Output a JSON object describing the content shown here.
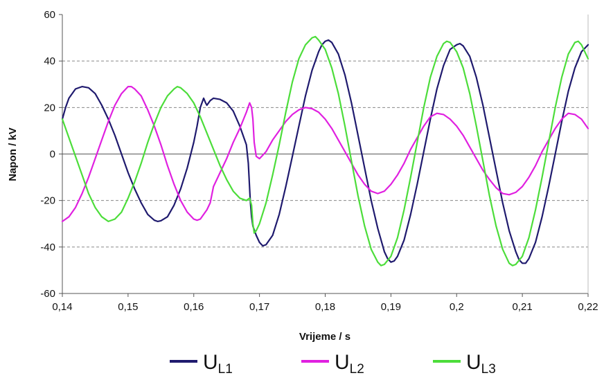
{
  "chart_data": {
    "type": "line",
    "title": "",
    "xlabel": "Vrijeme / s",
    "ylabel": "Napon / kV",
    "xlim": [
      0.14,
      0.22
    ],
    "ylim": [
      -60,
      60
    ],
    "x_ticks": [
      "0,14",
      "0,15",
      "0,16",
      "0,17",
      "0,18",
      "0,19",
      "0,2",
      "0,21",
      "0,22"
    ],
    "y_ticks": [
      "60",
      "40",
      "20",
      "0",
      "-20",
      "-40",
      "-60"
    ],
    "grid": "horizontal-dashed",
    "legend_position": "bottom",
    "series": [
      {
        "name": "UL1",
        "name_main": "U",
        "name_sub": "L1",
        "color": "#1f1a6e",
        "points": [
          [
            0.14,
            15
          ],
          [
            0.1405,
            20
          ],
          [
            0.141,
            24
          ],
          [
            0.142,
            28
          ],
          [
            0.143,
            29
          ],
          [
            0.144,
            28.5
          ],
          [
            0.145,
            26
          ],
          [
            0.146,
            21
          ],
          [
            0.147,
            15
          ],
          [
            0.148,
            8
          ],
          [
            0.149,
            0
          ],
          [
            0.15,
            -8
          ],
          [
            0.151,
            -15
          ],
          [
            0.152,
            -21
          ],
          [
            0.153,
            -26
          ],
          [
            0.154,
            -28.5
          ],
          [
            0.1545,
            -29
          ],
          [
            0.155,
            -28.7
          ],
          [
            0.156,
            -27
          ],
          [
            0.157,
            -22
          ],
          [
            0.158,
            -15
          ],
          [
            0.159,
            -6
          ],
          [
            0.16,
            5
          ],
          [
            0.1605,
            12
          ],
          [
            0.161,
            20
          ],
          [
            0.1615,
            24
          ],
          [
            0.1618,
            22
          ],
          [
            0.162,
            21
          ],
          [
            0.1625,
            23
          ],
          [
            0.163,
            24
          ],
          [
            0.164,
            23.5
          ],
          [
            0.165,
            22
          ],
          [
            0.166,
            18.5
          ],
          [
            0.167,
            12
          ],
          [
            0.168,
            4
          ],
          [
            0.1683,
            -4
          ],
          [
            0.1686,
            -20
          ],
          [
            0.1688,
            -27
          ],
          [
            0.169,
            -31
          ],
          [
            0.1695,
            -35
          ],
          [
            0.17,
            -38
          ],
          [
            0.1705,
            -39.5
          ],
          [
            0.171,
            -39
          ],
          [
            0.172,
            -35
          ],
          [
            0.173,
            -26
          ],
          [
            0.174,
            -14
          ],
          [
            0.175,
            -1
          ],
          [
            0.176,
            12
          ],
          [
            0.177,
            25
          ],
          [
            0.178,
            36
          ],
          [
            0.179,
            44
          ],
          [
            0.1795,
            47
          ],
          [
            0.18,
            48.5
          ],
          [
            0.1805,
            49
          ],
          [
            0.181,
            48
          ],
          [
            0.182,
            43
          ],
          [
            0.183,
            34
          ],
          [
            0.184,
            22
          ],
          [
            0.185,
            8
          ],
          [
            0.186,
            -6
          ],
          [
            0.187,
            -20
          ],
          [
            0.188,
            -32
          ],
          [
            0.189,
            -42
          ],
          [
            0.1895,
            -45
          ],
          [
            0.19,
            -46.5
          ],
          [
            0.1905,
            -46
          ],
          [
            0.191,
            -44
          ],
          [
            0.192,
            -37
          ],
          [
            0.193,
            -26
          ],
          [
            0.194,
            -13
          ],
          [
            0.195,
            1
          ],
          [
            0.196,
            15
          ],
          [
            0.197,
            28
          ],
          [
            0.198,
            38
          ],
          [
            0.199,
            45
          ],
          [
            0.2,
            47
          ],
          [
            0.2005,
            47.5
          ],
          [
            0.201,
            46.5
          ],
          [
            0.202,
            42
          ],
          [
            0.203,
            33
          ],
          [
            0.204,
            21
          ],
          [
            0.205,
            7
          ],
          [
            0.206,
            -7
          ],
          [
            0.207,
            -21
          ],
          [
            0.208,
            -33
          ],
          [
            0.209,
            -42
          ],
          [
            0.2095,
            -45.5
          ],
          [
            0.21,
            -47
          ],
          [
            0.2105,
            -47
          ],
          [
            0.211,
            -45
          ],
          [
            0.212,
            -38
          ],
          [
            0.213,
            -27
          ],
          [
            0.214,
            -14
          ],
          [
            0.215,
            0
          ],
          [
            0.216,
            14
          ],
          [
            0.217,
            27
          ],
          [
            0.218,
            37
          ],
          [
            0.219,
            44
          ],
          [
            0.22,
            47
          ]
        ]
      },
      {
        "name": "UL2",
        "name_main": "U",
        "name_sub": "L2",
        "color": "#e020e0",
        "points": [
          [
            0.14,
            -29
          ],
          [
            0.141,
            -27
          ],
          [
            0.142,
            -23
          ],
          [
            0.143,
            -17
          ],
          [
            0.144,
            -10
          ],
          [
            0.145,
            -2
          ],
          [
            0.146,
            6
          ],
          [
            0.147,
            14
          ],
          [
            0.148,
            21
          ],
          [
            0.149,
            26
          ],
          [
            0.15,
            29
          ],
          [
            0.1505,
            29
          ],
          [
            0.151,
            28
          ],
          [
            0.152,
            25
          ],
          [
            0.153,
            19
          ],
          [
            0.154,
            12
          ],
          [
            0.155,
            4
          ],
          [
            0.156,
            -5
          ],
          [
            0.157,
            -13
          ],
          [
            0.158,
            -20
          ],
          [
            0.159,
            -25
          ],
          [
            0.16,
            -28
          ],
          [
            0.1605,
            -28.5
          ],
          [
            0.161,
            -28
          ],
          [
            0.162,
            -24
          ],
          [
            0.1625,
            -21
          ],
          [
            0.163,
            -14
          ],
          [
            0.164,
            -8
          ],
          [
            0.165,
            -2
          ],
          [
            0.166,
            5
          ],
          [
            0.167,
            11
          ],
          [
            0.168,
            18
          ],
          [
            0.1685,
            22
          ],
          [
            0.1688,
            20
          ],
          [
            0.169,
            15
          ],
          [
            0.1692,
            5
          ],
          [
            0.1695,
            -1
          ],
          [
            0.17,
            -2
          ],
          [
            0.171,
            1
          ],
          [
            0.172,
            6
          ],
          [
            0.173,
            10
          ],
          [
            0.174,
            14
          ],
          [
            0.175,
            17
          ],
          [
            0.176,
            19
          ],
          [
            0.177,
            20
          ],
          [
            0.178,
            19.5
          ],
          [
            0.179,
            18
          ],
          [
            0.18,
            15
          ],
          [
            0.181,
            11
          ],
          [
            0.182,
            6
          ],
          [
            0.183,
            1
          ],
          [
            0.184,
            -4
          ],
          [
            0.185,
            -9
          ],
          [
            0.186,
            -13
          ],
          [
            0.187,
            -16
          ],
          [
            0.188,
            -17
          ],
          [
            0.189,
            -16
          ],
          [
            0.19,
            -13
          ],
          [
            0.191,
            -9
          ],
          [
            0.192,
            -4
          ],
          [
            0.193,
            2
          ],
          [
            0.194,
            7
          ],
          [
            0.195,
            12
          ],
          [
            0.196,
            16
          ],
          [
            0.197,
            17.5
          ],
          [
            0.198,
            17
          ],
          [
            0.199,
            15
          ],
          [
            0.2,
            12
          ],
          [
            0.201,
            8
          ],
          [
            0.202,
            3
          ],
          [
            0.203,
            -2
          ],
          [
            0.204,
            -7
          ],
          [
            0.205,
            -11
          ],
          [
            0.206,
            -14.5
          ],
          [
            0.207,
            -17
          ],
          [
            0.208,
            -17.5
          ],
          [
            0.209,
            -16.5
          ],
          [
            0.21,
            -14
          ],
          [
            0.211,
            -10
          ],
          [
            0.212,
            -5
          ],
          [
            0.213,
            1
          ],
          [
            0.214,
            6
          ],
          [
            0.215,
            11
          ],
          [
            0.216,
            15
          ],
          [
            0.217,
            17.5
          ],
          [
            0.218,
            17
          ],
          [
            0.219,
            15
          ],
          [
            0.22,
            11
          ]
        ]
      },
      {
        "name": "UL3",
        "name_main": "U",
        "name_sub": "L3",
        "color": "#4cdd3a",
        "points": [
          [
            0.14,
            15
          ],
          [
            0.141,
            7
          ],
          [
            0.142,
            -1
          ],
          [
            0.143,
            -9
          ],
          [
            0.144,
            -17
          ],
          [
            0.145,
            -23
          ],
          [
            0.146,
            -27
          ],
          [
            0.147,
            -29
          ],
          [
            0.148,
            -28
          ],
          [
            0.149,
            -25
          ],
          [
            0.15,
            -19
          ],
          [
            0.151,
            -12
          ],
          [
            0.152,
            -4
          ],
          [
            0.153,
            5
          ],
          [
            0.154,
            13
          ],
          [
            0.155,
            20
          ],
          [
            0.156,
            25
          ],
          [
            0.157,
            28
          ],
          [
            0.1575,
            29
          ],
          [
            0.158,
            28.5
          ],
          [
            0.159,
            26
          ],
          [
            0.16,
            22
          ],
          [
            0.161,
            16
          ],
          [
            0.162,
            9
          ],
          [
            0.163,
            2
          ],
          [
            0.164,
            -5
          ],
          [
            0.165,
            -11
          ],
          [
            0.166,
            -16
          ],
          [
            0.167,
            -19
          ],
          [
            0.168,
            -20
          ],
          [
            0.1685,
            -19
          ],
          [
            0.1688,
            -22
          ],
          [
            0.169,
            -30
          ],
          [
            0.1692,
            -34
          ],
          [
            0.1695,
            -33
          ],
          [
            0.17,
            -30
          ],
          [
            0.171,
            -21
          ],
          [
            0.172,
            -9
          ],
          [
            0.173,
            4
          ],
          [
            0.174,
            18
          ],
          [
            0.175,
            31
          ],
          [
            0.176,
            41
          ],
          [
            0.177,
            47
          ],
          [
            0.178,
            50
          ],
          [
            0.1785,
            50.5
          ],
          [
            0.179,
            49
          ],
          [
            0.18,
            45
          ],
          [
            0.181,
            37
          ],
          [
            0.182,
            26
          ],
          [
            0.183,
            12
          ],
          [
            0.184,
            -3
          ],
          [
            0.185,
            -18
          ],
          [
            0.186,
            -31
          ],
          [
            0.187,
            -41
          ],
          [
            0.188,
            -46.5
          ],
          [
            0.1885,
            -48
          ],
          [
            0.189,
            -47.5
          ],
          [
            0.19,
            -44
          ],
          [
            0.191,
            -36
          ],
          [
            0.192,
            -24
          ],
          [
            0.193,
            -10
          ],
          [
            0.194,
            5
          ],
          [
            0.195,
            20
          ],
          [
            0.196,
            33
          ],
          [
            0.197,
            42
          ],
          [
            0.198,
            47.5
          ],
          [
            0.1985,
            48.5
          ],
          [
            0.199,
            48
          ],
          [
            0.2,
            44
          ],
          [
            0.201,
            37
          ],
          [
            0.202,
            26
          ],
          [
            0.203,
            12
          ],
          [
            0.204,
            -3
          ],
          [
            0.205,
            -18
          ],
          [
            0.206,
            -31
          ],
          [
            0.207,
            -41
          ],
          [
            0.208,
            -47
          ],
          [
            0.2085,
            -48
          ],
          [
            0.209,
            -47.5
          ],
          [
            0.21,
            -44
          ],
          [
            0.211,
            -36
          ],
          [
            0.212,
            -24
          ],
          [
            0.213,
            -10
          ],
          [
            0.214,
            5
          ],
          [
            0.215,
            20
          ],
          [
            0.216,
            33
          ],
          [
            0.217,
            43
          ],
          [
            0.218,
            48
          ],
          [
            0.2185,
            48.5
          ],
          [
            0.219,
            47
          ],
          [
            0.22,
            41
          ]
        ]
      }
    ]
  }
}
